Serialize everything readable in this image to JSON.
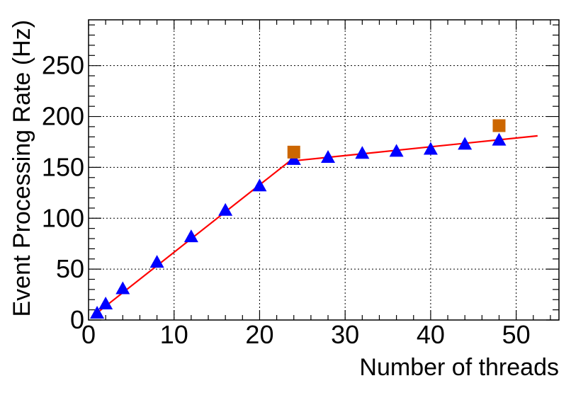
{
  "chart_data": {
    "type": "scatter",
    "title": "",
    "xlabel": "Number of threads",
    "ylabel": "Event Processing Rate (Hz)",
    "xlim": [
      0,
      55
    ],
    "ylim": [
      0,
      295
    ],
    "x_ticks": [
      "0",
      "10",
      "20",
      "30",
      "40",
      "50"
    ],
    "y_ticks": [
      "0",
      "50",
      "100",
      "150",
      "200",
      "250"
    ],
    "grid": true,
    "legend": "none",
    "series": [
      {
        "marker": "triangle",
        "color": "#0000ff",
        "points": [
          [
            1,
            7
          ],
          [
            2,
            16
          ],
          [
            4,
            31
          ],
          [
            8,
            57
          ],
          [
            12,
            82
          ],
          [
            16,
            108
          ],
          [
            20,
            132
          ],
          [
            24,
            158
          ],
          [
            28,
            160
          ],
          [
            32,
            164
          ],
          [
            36,
            166
          ],
          [
            40,
            168
          ],
          [
            44,
            173
          ],
          [
            48,
            177
          ]
        ]
      },
      {
        "marker": "square",
        "color": "#cc6600",
        "points": [
          [
            24,
            165
          ],
          [
            48,
            191
          ]
        ]
      },
      {
        "marker": "line",
        "color": "#ff0000",
        "points": [
          [
            1,
            7
          ],
          [
            23.5,
            156
          ],
          [
            52.5,
            181
          ]
        ]
      }
    ]
  }
}
